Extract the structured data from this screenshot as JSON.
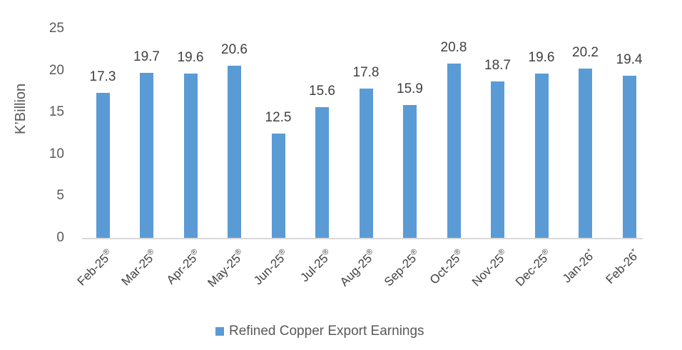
{
  "chart_data": {
    "type": "bar",
    "title": "",
    "xlabel": "",
    "ylabel": "K’Billion",
    "ylim": [
      0,
      25
    ],
    "yticks": [
      0,
      5,
      10,
      15,
      20,
      25
    ],
    "grid": false,
    "legend_position": "bottom",
    "categories": [
      "Feb-25®",
      "Mar-25®",
      "Apr-25®",
      "May-25®",
      "Jun-25®",
      "Jul-25®",
      "Aug-25®",
      "Sep-25®",
      "Oct-25®",
      "Nov-25®",
      "Dec-25®",
      "Jan-26*",
      "Feb-26*"
    ],
    "series": [
      {
        "name": "Refined Copper Export Earnings",
        "color": "#5b9bd5",
        "values": [
          17.3,
          19.7,
          19.6,
          20.6,
          12.5,
          15.6,
          17.8,
          15.9,
          20.8,
          18.7,
          19.6,
          20.2,
          19.4
        ]
      }
    ],
    "data_labels": [
      "17.3",
      "19.7",
      "19.6",
      "20.6",
      "12.5",
      "15.6",
      "17.8",
      "15.9",
      "20.8",
      "18.7",
      "19.6",
      "20.2",
      "19.4"
    ]
  },
  "legend": {
    "label": "Refined Copper Export Earnings"
  }
}
